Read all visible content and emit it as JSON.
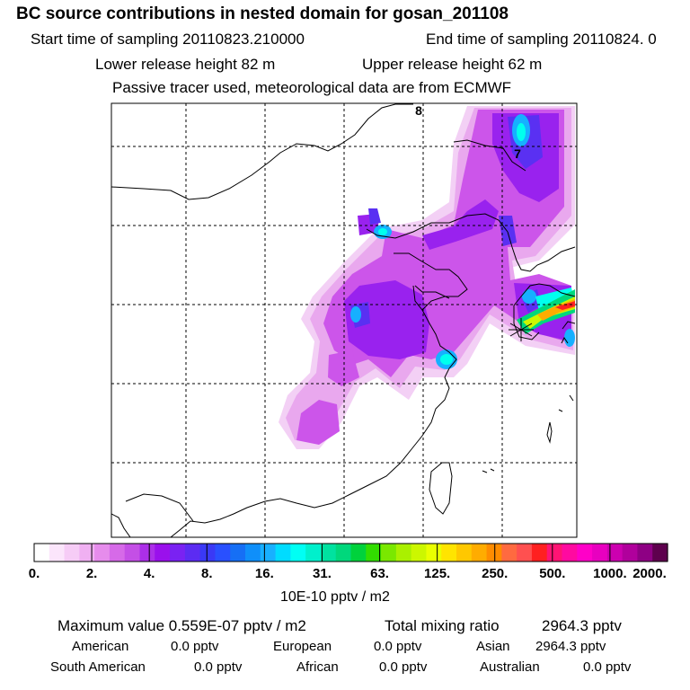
{
  "header": {
    "title": "BC  source contributions in nested domain for gosan_201108",
    "start_label": "Start time of sampling 20110823.210000",
    "end_label": "End time of sampling 20110824.     0",
    "lower_label": "Lower release height   82 m",
    "upper_label": "Upper release height   62 m",
    "tracer_label": "Passive tracer used, meteorological data are from ECMWF"
  },
  "map": {
    "grid_labels": [
      "8",
      "7"
    ]
  },
  "chart_data": {
    "type": "heatmap",
    "title": "BC  source contributions in nested domain for gosan_201108",
    "colorbar_ticks": [
      "0.",
      "2.",
      "4.",
      "8.",
      "16.",
      "31.",
      "63.",
      "125.",
      "250.",
      "500.",
      "1000.",
      "2000."
    ],
    "colorbar_colors": [
      "#ffffff",
      "#fbe5fb",
      "#f6ccf6",
      "#f0b0f2",
      "#e68cec",
      "#d66ae8",
      "#c44fe6",
      "#ac2fe8",
      "#9a10ec",
      "#7a22f2",
      "#5c2cf2",
      "#3a39f6",
      "#2950ff",
      "#166ff5",
      "#0f8ffa",
      "#18b0ff",
      "#00dcff",
      "#00fff4",
      "#00f0cc",
      "#00e2a0",
      "#00d87c",
      "#00d23c",
      "#32dd00",
      "#7ae800",
      "#aaf000",
      "#ccf700",
      "#eaff00",
      "#ffe400",
      "#ffc800",
      "#ffac00",
      "#ff8c00",
      "#ff6a40",
      "#ff5050",
      "#ff2020",
      "#ff1474",
      "#ff0aa0",
      "#ff00c8",
      "#e800c0",
      "#cc00b0",
      "#b0009c",
      "#8e0084",
      "#5e004e"
    ],
    "unit_label": "10E-10 pptv / m2",
    "max_value": 5.59e-08,
    "total_mixing_ratio_pptv": 2964.3
  },
  "stats": {
    "max_label": "Maximum value  0.559E-07 pptv / m2",
    "total_label": "Total mixing ratio",
    "total_value": "2964.3 pptv",
    "regions": [
      {
        "name": "American",
        "value": "0.0 pptv"
      },
      {
        "name": "European",
        "value": "0.0 pptv"
      },
      {
        "name": "Asian",
        "value": "2964.3 pptv"
      },
      {
        "name": "South American",
        "value": "0.0 pptv"
      },
      {
        "name": "African",
        "value": "0.0 pptv"
      },
      {
        "name": "Australian",
        "value": "0.0 pptv"
      }
    ]
  }
}
